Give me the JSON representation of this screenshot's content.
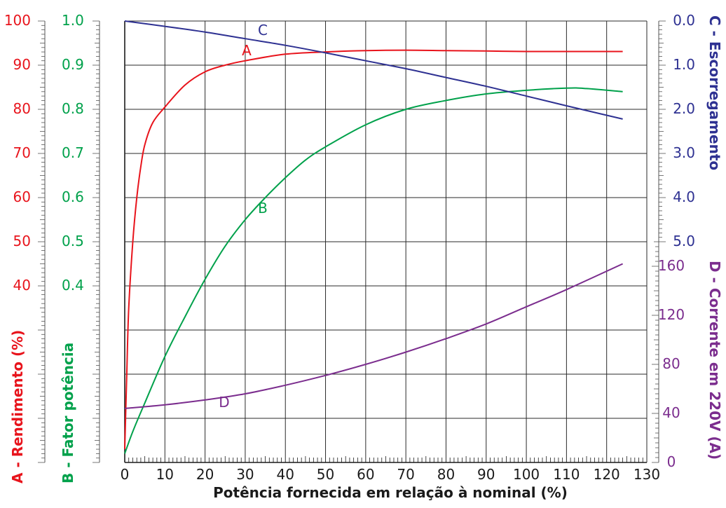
{
  "chart_data": {
    "type": "line",
    "xlabel": "Potência fornecida em relação à nominal (%)",
    "x_ticks": [
      "0",
      "10",
      "20",
      "30",
      "40",
      "50",
      "60",
      "70",
      "80",
      "90",
      "100",
      "110",
      "120",
      "130"
    ],
    "xlim": [
      0,
      130
    ],
    "axes": {
      "A": {
        "label": "A - Rendimento (%)",
        "ticks": [
          "100",
          "90",
          "80",
          "70",
          "60",
          "50",
          "40"
        ],
        "range": [
          0,
          100
        ],
        "color": "#e8141c"
      },
      "B": {
        "label": "B - Fator potência",
        "ticks": [
          "1.0",
          "0.9",
          "0.8",
          "0.7",
          "0.6",
          "0.5",
          "0.4"
        ],
        "range": [
          0,
          1.0
        ],
        "color": "#00a14b"
      },
      "C": {
        "label": "C - Escorregamento",
        "ticks": [
          "0.0",
          "1.0",
          "2.0",
          "3.0",
          "4.0",
          "5.0"
        ],
        "range": [
          0,
          5.0
        ],
        "color": "#2e3192"
      },
      "D": {
        "label": "D - Corrente em 220V (A)",
        "ticks": [
          "160",
          "120",
          "80",
          "40",
          "0"
        ],
        "range": [
          0,
          180
        ],
        "color": "#7b2d8e"
      }
    },
    "series": [
      {
        "name": "A",
        "color": "#e8141c",
        "axis": "A",
        "x": [
          0,
          0.5,
          1,
          2,
          3,
          4,
          5,
          7,
          10,
          15,
          20,
          25,
          30,
          40,
          50,
          60,
          70,
          80,
          90,
          100,
          110,
          124
        ],
        "y": [
          3,
          20,
          35,
          50,
          60,
          67,
          72,
          77,
          80.5,
          85.5,
          88.5,
          90,
          91,
          92.5,
          93,
          93.3,
          93.4,
          93.3,
          93.2,
          93.1,
          93.1,
          93.1
        ]
      },
      {
        "name": "B",
        "color": "#00a14b",
        "axis": "B",
        "x": [
          0,
          2,
          5,
          10,
          15,
          20,
          25,
          30,
          35,
          40,
          45,
          50,
          60,
          70,
          80,
          90,
          100,
          110,
          115,
          124
        ],
        "y": [
          0.02,
          0.07,
          0.135,
          0.24,
          0.33,
          0.415,
          0.49,
          0.55,
          0.6,
          0.645,
          0.685,
          0.715,
          0.765,
          0.8,
          0.82,
          0.835,
          0.843,
          0.848,
          0.847,
          0.84
        ]
      },
      {
        "name": "C",
        "color": "#2e3192",
        "axis": "C",
        "x": [
          0,
          10,
          20,
          30,
          40,
          50,
          60,
          70,
          80,
          90,
          100,
          110,
          124
        ],
        "y": [
          0,
          0.12,
          0.25,
          0.4,
          0.55,
          0.72,
          0.9,
          1.08,
          1.28,
          1.48,
          1.7,
          1.92,
          2.22
        ]
      },
      {
        "name": "D",
        "color": "#7b2d8e",
        "axis": "D",
        "x": [
          0,
          10,
          20,
          30,
          40,
          50,
          60,
          70,
          80,
          90,
          100,
          110,
          124
        ],
        "y": [
          44,
          47,
          51,
          56,
          63,
          71,
          80,
          90,
          101,
          113,
          127,
          141,
          162
        ]
      }
    ]
  }
}
